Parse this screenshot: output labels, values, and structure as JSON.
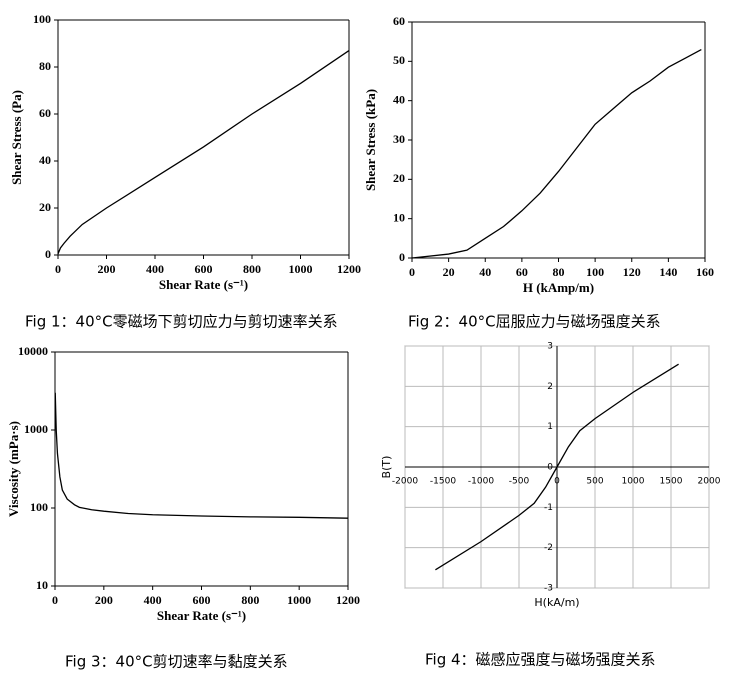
{
  "chart_data": [
    {
      "type": "line",
      "caption": "Fig 1：40°C零磁场下剪切应力与剪切速率关系",
      "xlabel": "Shear Rate (s⁻¹)",
      "ylabel": "Shear Stress (Pa)",
      "x": [
        0,
        10,
        25,
        50,
        100,
        200,
        400,
        600,
        800,
        1000,
        1200
      ],
      "series": [
        {
          "color": "#000000",
          "values": [
            0.5,
            3,
            5,
            8,
            13,
            20,
            33,
            46,
            60,
            73,
            87
          ]
        }
      ],
      "xlim": [
        0,
        1200
      ],
      "ylim": [
        0,
        100
      ],
      "xticks": [
        0,
        200,
        400,
        600,
        800,
        1000,
        1200
      ],
      "yticks": [
        0,
        20,
        40,
        60,
        80,
        100
      ]
    },
    {
      "type": "line",
      "caption": "Fig 2：40°C屈服应力与磁场强度关系",
      "xlabel": "H (kAmp/m)",
      "ylabel": "Shear Stress (kPa)",
      "x": [
        0,
        20,
        30,
        40,
        50,
        60,
        70,
        80,
        90,
        100,
        110,
        120,
        130,
        140,
        150,
        158
      ],
      "series": [
        {
          "color": "#000000",
          "values": [
            0,
            1,
            2,
            5,
            8,
            12,
            16.5,
            22,
            28,
            34,
            38,
            42,
            45,
            48.5,
            51,
            53
          ]
        }
      ],
      "xlim": [
        0,
        160
      ],
      "ylim": [
        0,
        60
      ],
      "xticks": [
        0,
        20,
        40,
        60,
        80,
        100,
        120,
        140,
        160
      ],
      "yticks": [
        0,
        10,
        20,
        30,
        40,
        50,
        60
      ]
    },
    {
      "type": "line",
      "caption": "Fig 3：40°C剪切速率与黏度关系",
      "xlabel": "Shear Rate (s⁻¹)",
      "ylabel": "Viscosity (mPa·s)",
      "log_y": true,
      "x": [
        1,
        5,
        10,
        20,
        30,
        50,
        80,
        100,
        150,
        200,
        300,
        400,
        600,
        800,
        1000,
        1200
      ],
      "series": [
        {
          "color": "#000000",
          "values": [
            3000,
            1000,
            500,
            250,
            170,
            130,
            110,
            102,
            95,
            91,
            85,
            82,
            79,
            77,
            76,
            74
          ]
        }
      ],
      "xlim": [
        0,
        1200
      ],
      "ylim": [
        10,
        10000
      ],
      "xticks": [
        0,
        200,
        400,
        600,
        800,
        1000,
        1200
      ],
      "yticks": [
        10,
        100,
        1000,
        10000
      ]
    },
    {
      "type": "line",
      "caption": "Fig 4：磁感应强度与磁场强度关系",
      "xlabel": "H(kA/m)",
      "ylabel": "B(T)",
      "grid": true,
      "axes_centered": true,
      "x": [
        -1600,
        -1000,
        -500,
        -300,
        -150,
        0,
        150,
        300,
        500,
        1000,
        1600
      ],
      "series": [
        {
          "color": "#000000",
          "values": [
            -2.55,
            -1.85,
            -1.2,
            -0.9,
            -0.5,
            0,
            0.5,
            0.9,
            1.2,
            1.85,
            2.55
          ]
        }
      ],
      "xlim": [
        -2000,
        2000
      ],
      "ylim": [
        -3,
        3
      ],
      "xticks": [
        -2000,
        -1500,
        -1000,
        -500,
        0,
        500,
        1000,
        1500,
        2000
      ],
      "yticks": [
        -3,
        -2,
        -1,
        0,
        1,
        2,
        3
      ]
    }
  ]
}
